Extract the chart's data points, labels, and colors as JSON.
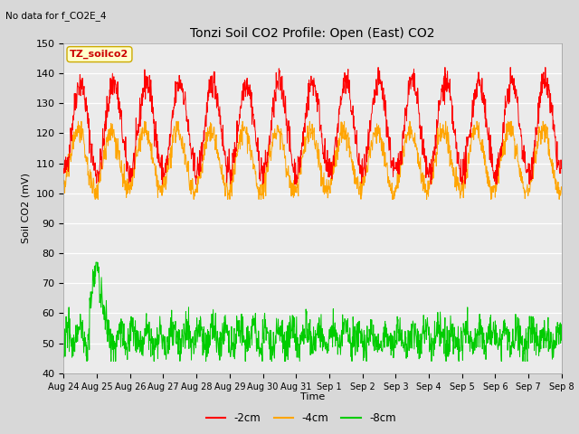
{
  "title": "Tonzi Soil CO2 Profile: Open (East) CO2",
  "subtitle": "No data for f_CO2E_4",
  "ylabel": "Soil CO2 (mV)",
  "xlabel": "Time",
  "legend_label": "TZ_soilco2",
  "ylim": [
    40,
    150
  ],
  "yticks": [
    40,
    50,
    60,
    70,
    80,
    90,
    100,
    110,
    120,
    130,
    140,
    150
  ],
  "series": {
    "2cm": {
      "color": "#FF0000",
      "label": "-2cm"
    },
    "4cm": {
      "color": "#FFA500",
      "label": "-4cm"
    },
    "8cm": {
      "color": "#00CC00",
      "label": "-8cm"
    }
  },
  "bg_color": "#D8D8D8",
  "plot_bg": "#EBEBEB",
  "legend_box_color": "#FFFFCC",
  "legend_box_edge": "#CCAA00",
  "legend_text_color": "#CC0000",
  "n_points": 1440,
  "xtick_labels": [
    "Aug 24",
    "Aug 25",
    "Aug 26",
    "Aug 27",
    "Aug 28",
    "Aug 29",
    "Aug 30",
    "Aug 31",
    "Sep 1",
    "Sep 2",
    "Sep 3",
    "Sep 4",
    "Sep 5",
    "Sep 6",
    "Sep 7",
    "Sep 8"
  ]
}
